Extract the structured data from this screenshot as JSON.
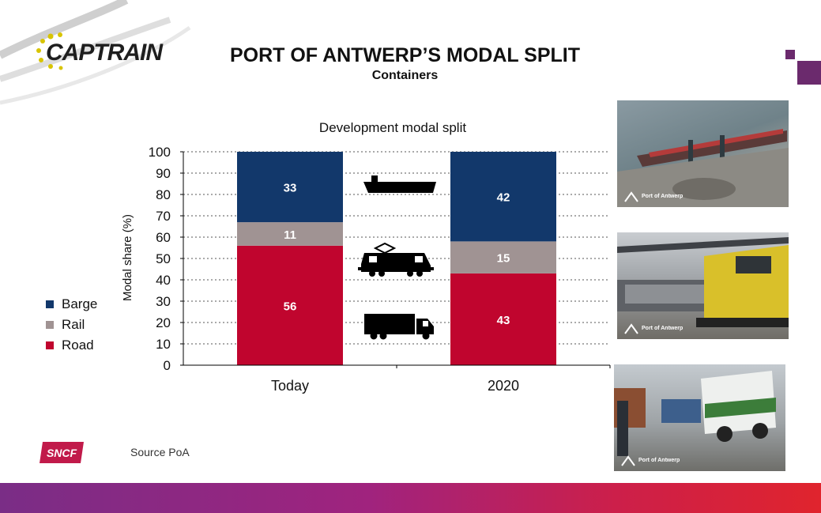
{
  "header": {
    "logo_text": "CAPTRAIN",
    "title": "PORT OF ANTWERP’S MODAL SPLIT",
    "subtitle": "Containers"
  },
  "colors": {
    "barge": "#12386b",
    "rail": "#a09393",
    "road": "#c0052e",
    "accent": "#6b2a6d"
  },
  "chart_data": {
    "type": "bar",
    "stacked": true,
    "title": "Development modal split",
    "ylabel": "Modal share (%)",
    "xlabel": "",
    "categories": [
      "Today",
      "2020"
    ],
    "ylim": [
      0,
      100
    ],
    "yticks": [
      "0",
      "10",
      "20",
      "30",
      "40",
      "50",
      "60",
      "70",
      "80",
      "90",
      "100"
    ],
    "grid": true,
    "legend_position": "left",
    "series": [
      {
        "name": "Road",
        "values": [
          56,
          43
        ],
        "color": "#c0052e"
      },
      {
        "name": "Rail",
        "values": [
          11,
          15
        ],
        "color": "#a09393"
      },
      {
        "name": "Barge",
        "values": [
          33,
          42
        ],
        "color": "#12386b"
      }
    ]
  },
  "legend": [
    {
      "label": "Barge",
      "color": "#12386b"
    },
    {
      "label": "Rail",
      "color": "#a09393"
    },
    {
      "label": "Road",
      "color": "#c0052e"
    }
  ],
  "icons": [
    "barge-icon",
    "locomotive-icon",
    "truck-icon"
  ],
  "photos": [
    {
      "name": "barge-photo",
      "watermark": "Port of Antwerp"
    },
    {
      "name": "rail-photo",
      "watermark": "Port of Antwerp"
    },
    {
      "name": "truck-photo",
      "watermark": "Port of Antwerp"
    }
  ],
  "footer": {
    "sncf_logo": "SNCF",
    "source": "Source PoA"
  }
}
